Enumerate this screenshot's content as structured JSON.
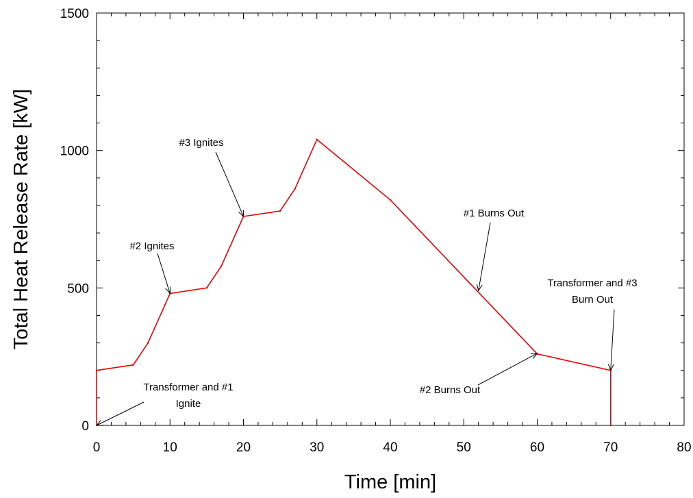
{
  "chart_data": {
    "type": "line",
    "title": "",
    "xlabel": "Time [min]",
    "ylabel": "Total Heat Release Rate [kW]",
    "xlim": [
      0,
      80
    ],
    "ylim": [
      0,
      1500
    ],
    "x_ticks": [
      0,
      10,
      20,
      30,
      40,
      50,
      60,
      70,
      80
    ],
    "y_ticks": [
      0,
      500,
      1000,
      1500
    ],
    "x_tick_labels": [
      "0",
      "10",
      "20",
      "30",
      "40",
      "50",
      "60",
      "70",
      "80"
    ],
    "y_tick_labels": [
      "0",
      "500",
      "1000",
      "1500"
    ],
    "x_minor_step": 2,
    "y_minor_step": 100,
    "grid": false,
    "legend": "none",
    "line_color": "#ee0000",
    "series": [
      {
        "x": [
          0,
          0,
          5,
          7,
          10,
          15,
          17,
          20,
          25,
          27,
          30,
          40,
          60,
          70,
          70
        ],
        "y": [
          0,
          200,
          220,
          300,
          480,
          500,
          580,
          760,
          780,
          860,
          1040,
          820,
          260,
          200,
          0
        ]
      }
    ],
    "annotations": [
      {
        "lines": [
          "Transformer and #1",
          "Ignite"
        ],
        "point": [
          0,
          0
        ]
      },
      {
        "lines": [
          "#2 Ignites"
        ],
        "point": [
          10,
          480
        ]
      },
      {
        "lines": [
          "#3 Ignites"
        ],
        "point": [
          20,
          760
        ]
      },
      {
        "lines": [
          "#1 Burns Out"
        ],
        "point": [
          52,
          490
        ]
      },
      {
        "lines": [
          "#2 Burns Out"
        ],
        "point": [
          60,
          262
        ]
      },
      {
        "lines": [
          "Transformer and #3",
          "Burn Out"
        ],
        "point": [
          70,
          200
        ]
      }
    ]
  }
}
